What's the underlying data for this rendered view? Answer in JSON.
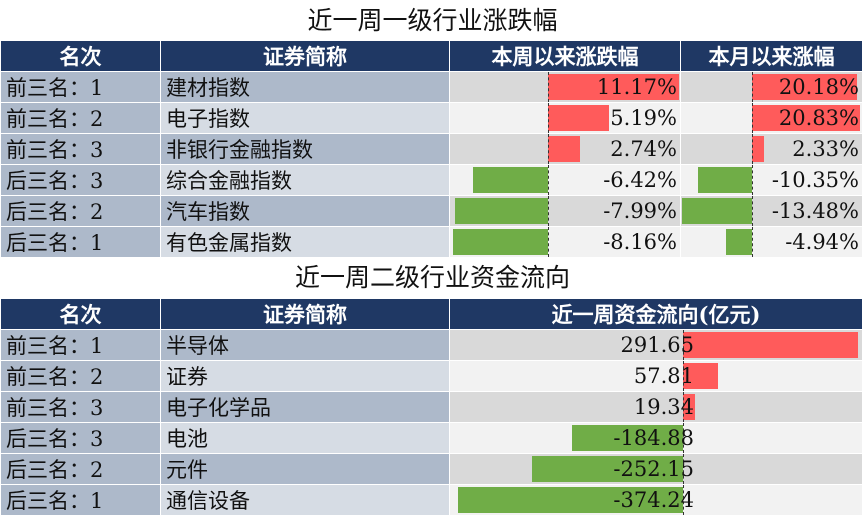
{
  "table1": {
    "title": "近一周一级行业涨跌幅",
    "headers": [
      "名次",
      "证券简称",
      "本周以来涨跌幅",
      "本月以来涨幅"
    ],
    "rows": [
      {
        "rank": "前三名：1",
        "name": "建材指数",
        "week": 11.17,
        "week_label": "11.17%",
        "month": 20.18,
        "month_label": "20.18%"
      },
      {
        "rank": "前三名：2",
        "name": "电子指数",
        "week": 5.19,
        "week_label": "5.19%",
        "month": 20.83,
        "month_label": "20.83%"
      },
      {
        "rank": "前三名：3",
        "name": "非银行金融指数",
        "week": 2.74,
        "week_label": "2.74%",
        "month": 2.33,
        "month_label": "2.33%"
      },
      {
        "rank": "后三名：3",
        "name": "综合金融指数",
        "week": -6.42,
        "week_label": "-6.42%",
        "month": -10.35,
        "month_label": "-10.35%"
      },
      {
        "rank": "后三名：2",
        "name": "汽车指数",
        "week": -7.99,
        "week_label": "-7.99%",
        "month": -13.48,
        "month_label": "-13.48%"
      },
      {
        "rank": "后三名：1",
        "name": "有色金属指数",
        "week": -8.16,
        "week_label": "-8.16%",
        "month": -4.94,
        "month_label": "-4.94%"
      }
    ]
  },
  "table2": {
    "title": "近一周二级行业资金流向",
    "headers": [
      "名次",
      "证券简称",
      "近一周资金流向(亿元)"
    ],
    "rows": [
      {
        "rank": "前三名：1",
        "name": "半导体",
        "flow": 291.65,
        "flow_label": "291.65"
      },
      {
        "rank": "前三名：2",
        "name": "证券",
        "flow": 57.81,
        "flow_label": "57.81"
      },
      {
        "rank": "前三名：3",
        "name": "电子化学品",
        "flow": 19.34,
        "flow_label": "19.34"
      },
      {
        "rank": "后三名：3",
        "name": "电池",
        "flow": -184.88,
        "flow_label": "-184.88"
      },
      {
        "rank": "后三名：2",
        "name": "元件",
        "flow": -252.15,
        "flow_label": "-252.15"
      },
      {
        "rank": "后三名：1",
        "name": "通信设备",
        "flow": -374.24,
        "flow_label": "-374.24"
      }
    ]
  },
  "colors": {
    "positive": "#ff5b5b",
    "negative": "#70ad47",
    "header": "#1f3864"
  }
}
